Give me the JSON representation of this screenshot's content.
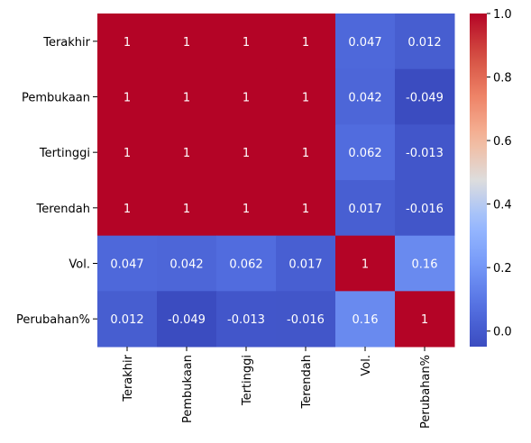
{
  "chart_data": {
    "type": "heatmap",
    "title": "",
    "xlabel": "",
    "ylabel": "",
    "x_labels": [
      "Terakhir",
      "Pembukaan",
      "Tertinggi",
      "Terendah",
      "Vol.",
      "Perubahan%"
    ],
    "y_labels": [
      "Terakhir",
      "Pembukaan",
      "Tertinggi",
      "Terendah",
      "Vol.",
      "Perubahan%"
    ],
    "values": [
      [
        1,
        1,
        1,
        1,
        0.047,
        0.012
      ],
      [
        1,
        1,
        1,
        1,
        0.042,
        -0.049
      ],
      [
        1,
        1,
        1,
        1,
        0.062,
        -0.013
      ],
      [
        1,
        1,
        1,
        1,
        0.017,
        -0.016
      ],
      [
        0.047,
        0.042,
        0.062,
        0.017,
        1,
        0.16
      ],
      [
        0.012,
        -0.049,
        -0.013,
        -0.016,
        0.16,
        1
      ]
    ],
    "value_labels": [
      [
        "1",
        "1",
        "1",
        "1",
        "0.047",
        "0.012"
      ],
      [
        "1",
        "1",
        "1",
        "1",
        "0.042",
        "-0.049"
      ],
      [
        "1",
        "1",
        "1",
        "1",
        "0.062",
        "-0.013"
      ],
      [
        "1",
        "1",
        "1",
        "1",
        "0.017",
        "-0.016"
      ],
      [
        "0.047",
        "0.042",
        "0.062",
        "0.017",
        "1",
        "0.16"
      ],
      [
        "0.012",
        "-0.049",
        "-0.013",
        "-0.016",
        "0.16",
        "1"
      ]
    ],
    "colormap": "coolwarm",
    "color_range": [
      -0.049,
      1
    ],
    "colorbar": {
      "ticks": [
        0.0,
        0.2,
        0.4,
        0.6,
        0.8,
        1.0
      ],
      "tick_labels": [
        "0.0",
        "0.2",
        "0.4",
        "0.6",
        "0.8",
        "1.0"
      ]
    },
    "grid": false,
    "annotations": true
  }
}
